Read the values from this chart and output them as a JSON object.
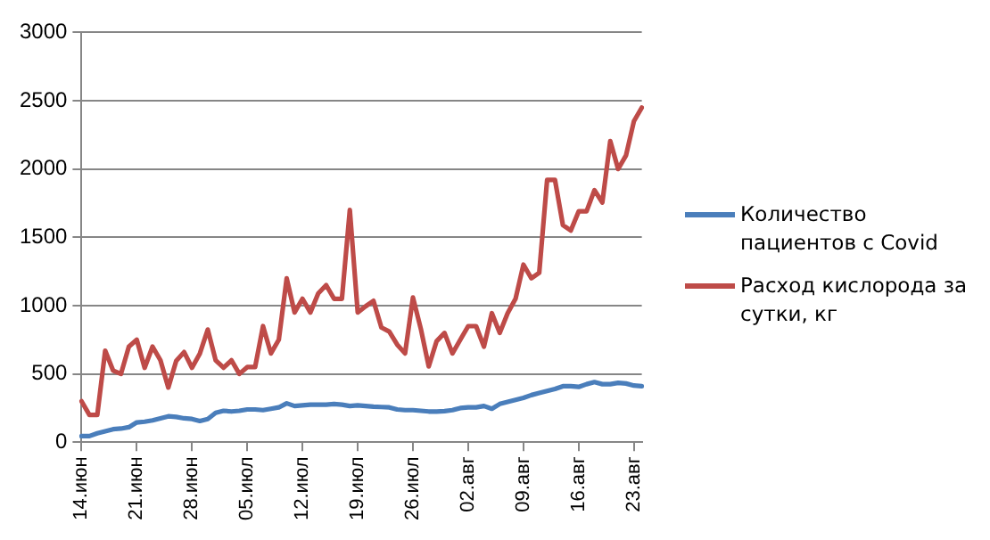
{
  "chart_data": {
    "type": "line",
    "categories": [
      "14.июн",
      null,
      null,
      null,
      null,
      null,
      null,
      "21.июн",
      null,
      null,
      null,
      null,
      null,
      null,
      "28.июн",
      null,
      null,
      null,
      null,
      null,
      null,
      "05.июл",
      null,
      null,
      null,
      null,
      null,
      null,
      "12.июл",
      null,
      null,
      null,
      null,
      null,
      null,
      "19.июл",
      null,
      null,
      null,
      null,
      null,
      null,
      "26.июл",
      null,
      null,
      null,
      null,
      null,
      null,
      "02.авг",
      null,
      null,
      null,
      null,
      null,
      null,
      "09.авг",
      null,
      null,
      null,
      null,
      null,
      null,
      "16.авг",
      null,
      null,
      null,
      null,
      null,
      null,
      "23.авг",
      null
    ],
    "series": [
      {
        "name": "Количество  пациентов с Covid",
        "color": "#4a7ebb",
        "values": [
          45,
          45,
          65,
          80,
          95,
          100,
          110,
          145,
          150,
          160,
          175,
          190,
          185,
          175,
          170,
          155,
          170,
          215,
          230,
          225,
          230,
          240,
          240,
          235,
          245,
          255,
          285,
          265,
          270,
          275,
          275,
          275,
          280,
          275,
          265,
          270,
          265,
          260,
          258,
          255,
          240,
          235,
          235,
          230,
          225,
          225,
          228,
          235,
          250,
          255,
          255,
          265,
          245,
          280,
          295,
          310,
          325,
          345,
          360,
          375,
          390,
          410,
          410,
          405,
          425,
          440,
          425,
          425,
          435,
          430,
          415,
          410
        ]
      },
      {
        "name": "Расход кислорода за сутки, кг",
        "color": "#be4b48",
        "values": [
          300,
          200,
          200,
          670,
          525,
          500,
          700,
          750,
          545,
          700,
          600,
          400,
          595,
          660,
          545,
          650,
          825,
          600,
          545,
          600,
          500,
          550,
          550,
          850,
          650,
          750,
          1200,
          950,
          1050,
          950,
          1090,
          1150,
          1050,
          1050,
          1700,
          950,
          995,
          1035,
          840,
          810,
          715,
          650,
          1060,
          830,
          555,
          740,
          800,
          650,
          750,
          850,
          850,
          700,
          945,
          800,
          945,
          1050,
          1300,
          1200,
          1240,
          1920,
          1920,
          1590,
          1550,
          1690,
          1690,
          1845,
          1755,
          2205,
          2000,
          2100,
          2350,
          2450
        ]
      }
    ],
    "ylim": [
      0,
      3000
    ],
    "yticks": [
      0,
      500,
      1000,
      1500,
      2000,
      2500,
      3000
    ],
    "grid": "y",
    "legend": "right",
    "marker": "none",
    "line_style": "solid"
  }
}
